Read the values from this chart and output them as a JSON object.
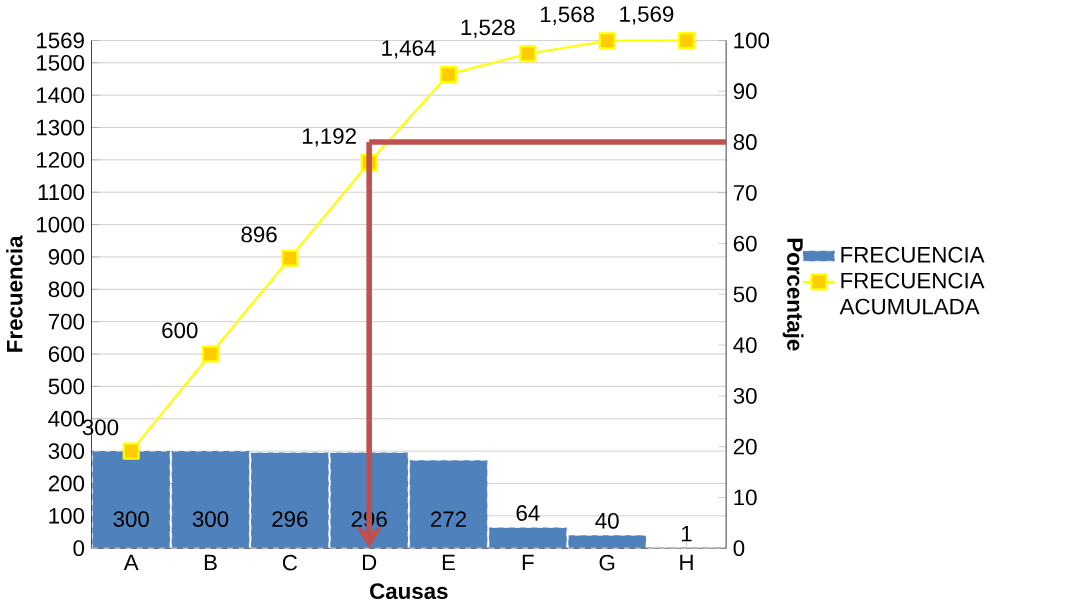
{
  "chart_data": {
    "type": "bar",
    "categories": [
      "A",
      "B",
      "C",
      "D",
      "E",
      "F",
      "G",
      "H"
    ],
    "series": [
      {
        "name": "FRECUENCIA",
        "color": "#4f81bd",
        "values": [
          300,
          300,
          296,
          296,
          272,
          64,
          40,
          1
        ],
        "value_labels": [
          "300",
          "300",
          "296",
          "296",
          "272",
          "64",
          "40",
          "1"
        ]
      },
      {
        "name": "FRECUENCIA ACUMULADA",
        "type": "line",
        "color": "#ffff00",
        "marker": "square",
        "values": [
          300,
          600,
          896,
          1192,
          1464,
          1528,
          1568,
          1569
        ],
        "value_labels": [
          "300",
          "600",
          "896",
          "1,192",
          "1,464",
          "1,528",
          "1,568",
          "1,569"
        ]
      }
    ],
    "xlabel": "Causas",
    "ylabel": "Frecuencia",
    "y2label": "Porcentaje",
    "ylim": [
      0,
      1569
    ],
    "yticks": [
      0,
      100,
      200,
      300,
      400,
      500,
      600,
      700,
      800,
      900,
      1000,
      1100,
      1200,
      1300,
      1400,
      1500,
      1569
    ],
    "y2lim": [
      0,
      100
    ],
    "y2ticks": [
      0,
      10,
      20,
      30,
      40,
      50,
      60,
      70,
      80,
      90,
      100
    ],
    "ref_lines": [
      {
        "axis": "y2",
        "value": 80,
        "color": "#c0504d"
      },
      {
        "axis": "x",
        "value": "D",
        "color": "#c0504d"
      }
    ],
    "grid": "y",
    "legend": "right"
  }
}
